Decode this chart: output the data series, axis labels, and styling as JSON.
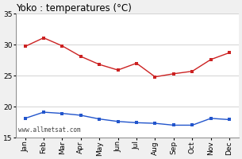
{
  "title": "Yoko : temperatures (°C)",
  "months": [
    "Jan",
    "Feb",
    "Mar",
    "Apr",
    "May",
    "Jun",
    "Jul",
    "Aug",
    "Sep",
    "Oct",
    "Nov",
    "Dec"
  ],
  "max_temps": [
    29.7,
    31.1,
    29.8,
    28.1,
    26.8,
    25.9,
    27.0,
    24.8,
    25.3,
    25.7,
    27.6,
    28.7
  ],
  "min_temps": [
    18.1,
    19.1,
    18.9,
    18.6,
    18.0,
    17.6,
    17.4,
    17.3,
    17.0,
    17.0,
    18.1,
    17.9
  ],
  "max_color": "#cc2222",
  "min_color": "#2255cc",
  "ylim": [
    15,
    35
  ],
  "yticks": [
    15,
    20,
    25,
    30,
    35
  ],
  "watermark": "www.allmetsat.com",
  "bg_color": "#f0f0f0",
  "plot_bg_color": "#ffffff",
  "grid_color": "#cccccc",
  "title_fontsize": 8.5,
  "tick_fontsize": 6.5,
  "watermark_fontsize": 5.5
}
